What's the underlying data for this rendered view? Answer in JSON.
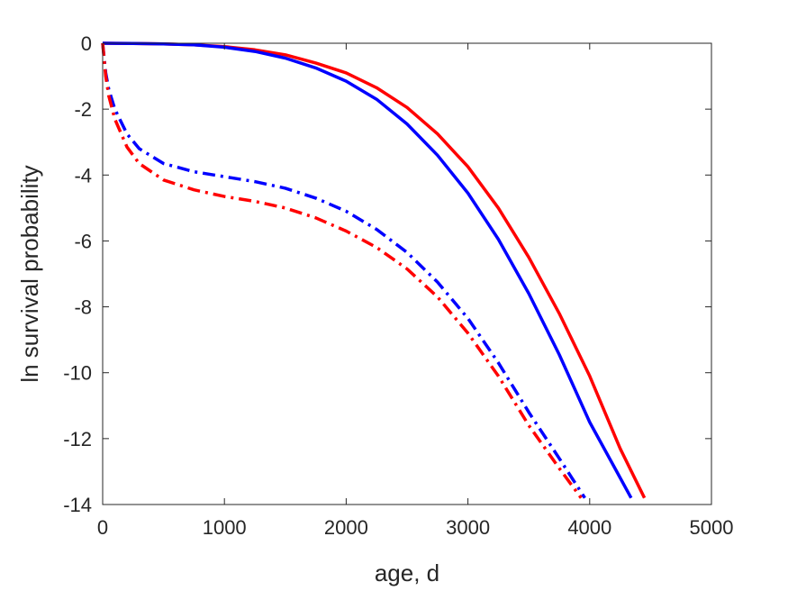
{
  "chart_data": {
    "type": "line",
    "title": "",
    "xlabel": "age, d",
    "ylabel": "ln survival probability",
    "xlim": [
      0,
      5000
    ],
    "ylim": [
      -14,
      0
    ],
    "xticks": [
      "0",
      "1000",
      "2000",
      "3000",
      "4000",
      "5000"
    ],
    "yticks": [
      "0",
      "-2",
      "-4",
      "-6",
      "-8",
      "-10",
      "-12",
      "-14"
    ],
    "xtick_values": [
      0,
      1000,
      2000,
      3000,
      4000,
      5000
    ],
    "ytick_values": [
      0,
      -2,
      -4,
      -6,
      -8,
      -10,
      -12,
      -14
    ],
    "grid": false,
    "legend": "none",
    "series": [
      {
        "color": "#ff0000",
        "style": "solid",
        "x": [
          0,
          250,
          500,
          750,
          1000,
          1250,
          1500,
          1750,
          2000,
          2250,
          2500,
          2750,
          3000,
          3250,
          3500,
          3750,
          4000,
          4250,
          4450
        ],
        "y": [
          0,
          -0.005,
          -0.02,
          -0.05,
          -0.1,
          -0.2,
          -0.35,
          -0.6,
          -0.9,
          -1.35,
          -1.95,
          -2.75,
          -3.75,
          -5.0,
          -6.5,
          -8.2,
          -10.1,
          -12.3,
          -13.8
        ]
      },
      {
        "color": "#0000ff",
        "style": "solid",
        "x": [
          0,
          250,
          500,
          750,
          1000,
          1250,
          1500,
          1750,
          2000,
          2250,
          2500,
          2750,
          3000,
          3250,
          3500,
          3750,
          4000,
          4200,
          4340
        ],
        "y": [
          0,
          -0.005,
          -0.02,
          -0.05,
          -0.12,
          -0.25,
          -0.45,
          -0.75,
          -1.15,
          -1.7,
          -2.45,
          -3.4,
          -4.55,
          -5.95,
          -7.6,
          -9.45,
          -11.5,
          -12.85,
          -13.8
        ]
      },
      {
        "color": "#0000ff",
        "style": "dashdot",
        "x": [
          0,
          25,
          50,
          100,
          200,
          300,
          500,
          750,
          1000,
          1250,
          1500,
          1750,
          2000,
          2250,
          2500,
          2750,
          3000,
          3250,
          3500,
          3750,
          3960
        ],
        "y": [
          0,
          -0.9,
          -1.4,
          -2.0,
          -2.75,
          -3.2,
          -3.65,
          -3.9,
          -4.05,
          -4.2,
          -4.4,
          -4.7,
          -5.1,
          -5.65,
          -6.35,
          -7.25,
          -8.35,
          -9.7,
          -11.2,
          -12.6,
          -13.8
        ]
      },
      {
        "color": "#ff0000",
        "style": "dashdot",
        "x": [
          0,
          25,
          50,
          100,
          200,
          300,
          500,
          750,
          1000,
          1250,
          1500,
          1750,
          2000,
          2250,
          2500,
          2750,
          3000,
          3250,
          3500,
          3750,
          3930
        ],
        "y": [
          0,
          -1.0,
          -1.6,
          -2.3,
          -3.15,
          -3.65,
          -4.15,
          -4.45,
          -4.65,
          -4.8,
          -5.0,
          -5.3,
          -5.7,
          -6.2,
          -6.85,
          -7.7,
          -8.8,
          -10.1,
          -11.6,
          -12.9,
          -13.8
        ]
      }
    ]
  }
}
